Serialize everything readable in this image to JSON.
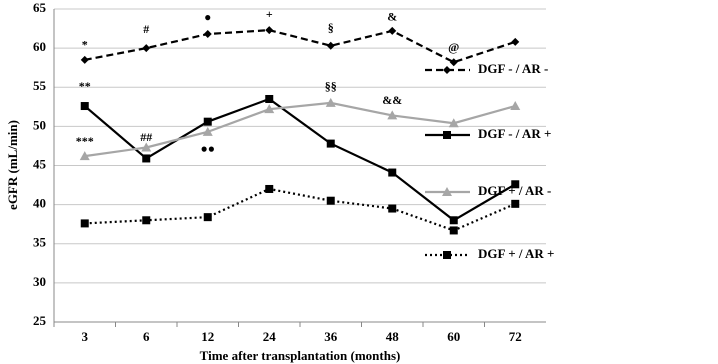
{
  "chart_data": {
    "type": "line",
    "x_label": "Time after transplantation (months)",
    "y_label": "eGFR (mL/min)",
    "categories": [
      "3",
      "6",
      "12",
      "24",
      "36",
      "48",
      "60",
      "72"
    ],
    "ylim": [
      25,
      65
    ],
    "yticks": [
      25,
      30,
      35,
      40,
      45,
      50,
      55,
      60,
      65
    ],
    "grid": true,
    "legend": "right",
    "series": [
      {
        "name": "DGF - / AR -",
        "color": "#000000",
        "line_style": "dashed",
        "marker": "diamond",
        "values": [
          58.5,
          60,
          61.8,
          62.3,
          60.3,
          62.2,
          58.2,
          60.8
        ]
      },
      {
        "name": "DGF - / AR +",
        "color": "#000000",
        "line_style": "solid",
        "marker": "square",
        "values": [
          52.6,
          45.9,
          50.6,
          53.5,
          47.8,
          44.1,
          38,
          42.6
        ]
      },
      {
        "name": "DGF + / AR -",
        "color": "#a6a6a6",
        "line_style": "solid",
        "marker": "triangle",
        "values": [
          46.2,
          47.3,
          49.3,
          52.2,
          53,
          51.4,
          50.4,
          52.6
        ]
      },
      {
        "name": "DGF + / AR +",
        "color": "#000000",
        "line_style": "dotted",
        "marker": "square",
        "values": [
          37.6,
          38,
          38.4,
          42,
          40.5,
          39.5,
          36.7,
          40.1
        ]
      }
    ],
    "annotations": [
      {
        "text": "*",
        "category": "3",
        "y": 60.3
      },
      {
        "text": "#",
        "category": "6",
        "y": 62.3
      },
      {
        "text": "●",
        "category": "12",
        "y": 63.8
      },
      {
        "text": "+",
        "category": "24",
        "y": 64.2
      },
      {
        "text": "§",
        "category": "36",
        "y": 62.5
      },
      {
        "text": "&",
        "category": "48",
        "y": 63.9
      },
      {
        "text": "@",
        "category": "60",
        "y": 60
      },
      {
        "text": "**",
        "category": "3",
        "y": 55
      },
      {
        "text": "§§",
        "category": "36",
        "y": 55
      },
      {
        "text": "&&",
        "category": "48",
        "y": 53.2
      },
      {
        "text": "***",
        "category": "3",
        "y": 48
      },
      {
        "text": "##",
        "category": "6",
        "y": 48.5
      },
      {
        "text": "●●",
        "category": "12",
        "y": 47
      }
    ]
  }
}
